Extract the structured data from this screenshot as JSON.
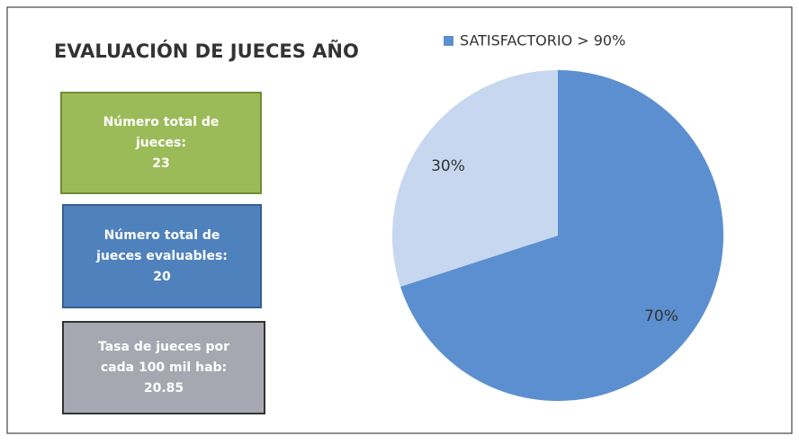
{
  "chart_data": {
    "type": "pie",
    "title": "EVALUACIÓN DE JUECES AÑO",
    "categories": [
      "SATISFACTORIO > 90%",
      null
    ],
    "values": [
      70,
      30
    ],
    "value_labels": [
      "70%",
      "30%"
    ],
    "colors": [
      "#5b8fcf",
      "#c6d7ef"
    ],
    "legend": "top"
  },
  "cards": [
    {
      "lines": [
        "Número total de",
        "jueces:",
        "23"
      ],
      "color": "#9bbb59"
    },
    {
      "lines": [
        "Número total de",
        "jueces evaluables:",
        "20"
      ],
      "color": "#4f81bd"
    },
    {
      "lines": [
        "Tasa de jueces por",
        "cada 100 mil hab:",
        "20.85"
      ],
      "color": "#a7a7b2"
    }
  ]
}
